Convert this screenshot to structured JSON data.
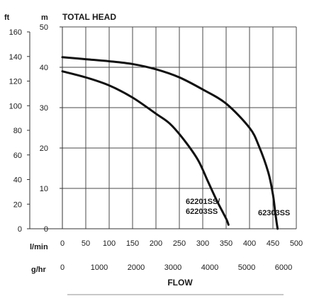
{
  "chart_data": {
    "type": "line",
    "title": "TOTAL HEAD",
    "xlabel": "FLOW",
    "left_axis": {
      "unit": "ft",
      "ticks": [
        0,
        20,
        40,
        60,
        80,
        100,
        120,
        140,
        160
      ]
    },
    "right_axis": {
      "unit": "m",
      "ylim": [
        0,
        50
      ],
      "ticks": [
        0,
        10,
        20,
        30,
        40,
        50
      ]
    },
    "x_axis_lmin": {
      "unit": "l/min",
      "xlim": [
        0,
        500
      ],
      "ticks": [
        0,
        50,
        100,
        150,
        200,
        250,
        300,
        350,
        400,
        450,
        500
      ]
    },
    "x_axis_ghr": {
      "unit": "g/hr",
      "ticks": [
        0,
        1000,
        2000,
        3000,
        4000,
        5000,
        6000
      ]
    },
    "grid": true,
    "series": [
      {
        "name": "62201SS/ 62203SS",
        "label_lines": [
          "62201SS/",
          "62203SS"
        ],
        "color": "#111111",
        "x": [
          0,
          50,
          100,
          150,
          200,
          230,
          260,
          290,
          310,
          330,
          350,
          355
        ],
        "y": [
          39,
          37.5,
          35.5,
          32.5,
          28.5,
          26,
          22,
          17,
          12,
          7,
          2.5,
          1
        ]
      },
      {
        "name": "62303SS",
        "label_lines": [
          "62303SS"
        ],
        "color": "#111111",
        "x": [
          0,
          50,
          100,
          150,
          200,
          250,
          300,
          350,
          400,
          420,
          440,
          450,
          455,
          458,
          460
        ],
        "y": [
          42.5,
          42,
          41.5,
          40.8,
          39.5,
          37.5,
          34.5,
          31,
          25,
          20.5,
          14,
          8.5,
          4,
          1.5,
          0
        ]
      }
    ]
  }
}
